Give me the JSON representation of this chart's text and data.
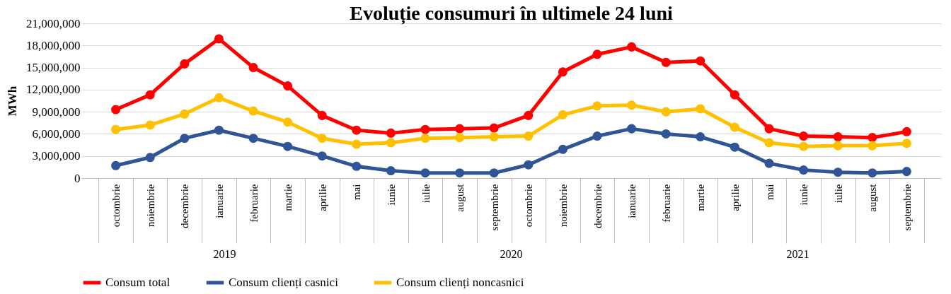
{
  "chart_data": {
    "type": "line",
    "title": "Evoluție consumuri în ultimele 24 luni",
    "ylabel": "MWh",
    "categories": [
      "octombrie",
      "noiembrie",
      "decembrie",
      "ianuarie",
      "februarie",
      "martie",
      "aprilie",
      "mai",
      "iunie",
      "iulie",
      "august",
      "septembrie",
      "octombrie",
      "noiembrie",
      "decembrie",
      "ianuarie",
      "februarie",
      "martie",
      "aprilie",
      "mai",
      "iunie",
      "iulie",
      "august",
      "septembrie"
    ],
    "series": [
      {
        "name": "Consum total",
        "color": "#ff0000",
        "values": [
          9300000,
          11300000,
          15500000,
          18900000,
          15000000,
          12500000,
          8500000,
          6500000,
          6100000,
          6600000,
          6700000,
          6800000,
          8500000,
          14400000,
          16800000,
          17800000,
          15700000,
          15900000,
          11300000,
          6700000,
          5700000,
          5600000,
          5500000,
          6300000
        ]
      },
      {
        "name": "Consum clienți casnici",
        "color": "#2f5597",
        "values": [
          1700000,
          2800000,
          5400000,
          6500000,
          5400000,
          4300000,
          3000000,
          1600000,
          1000000,
          700000,
          700000,
          700000,
          1800000,
          3900000,
          5700000,
          6700000,
          6000000,
          5600000,
          4200000,
          2000000,
          1100000,
          800000,
          700000,
          900000
        ]
      },
      {
        "name": "Consum clienți noncasnici",
        "color": "#ffc000",
        "values": [
          6600000,
          7200000,
          8700000,
          10900000,
          9100000,
          7600000,
          5400000,
          4600000,
          4800000,
          5400000,
          5500000,
          5600000,
          5700000,
          8600000,
          9800000,
          9900000,
          9000000,
          9400000,
          6900000,
          4800000,
          4300000,
          4400000,
          4400000,
          4700000
        ]
      }
    ],
    "ylim": [
      0,
      21000000
    ],
    "yticks": [
      0,
      {
        "value": 3000000,
        "label": "3,000,000"
      },
      {
        "value": 6000000,
        "label": "6,000,000"
      },
      {
        "value": 9000000,
        "label": "9,000,000"
      },
      {
        "value": 12000000,
        "label": "12,000,000"
      },
      {
        "value": 15000000,
        "label": "15,000,000"
      },
      {
        "value": 18000000,
        "label": "18,000,000"
      },
      {
        "value": 21000000,
        "label": "21,000,000"
      }
    ],
    "grid": "y",
    "legend": "bottom",
    "marker": "circle",
    "line_style": "solid",
    "annotations": [
      "2019",
      "2020",
      "2021"
    ]
  }
}
